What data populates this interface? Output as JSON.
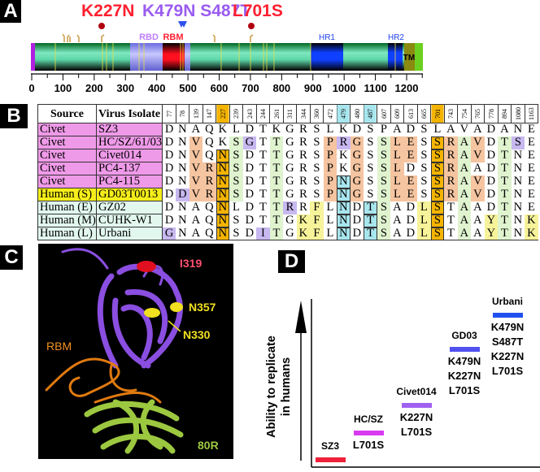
{
  "panels": {
    "a": "A",
    "b": "B",
    "c": "C",
    "d": "D"
  },
  "panel_a": {
    "mutations": [
      {
        "label": "K227N",
        "color": "#ff2030"
      },
      {
        "label": "K479N S487T",
        "color": "#9a5cf0"
      },
      {
        "label": "L701S",
        "color": "#ff2030"
      }
    ],
    "domains": {
      "rbd": "RBD",
      "rbm": "RBM",
      "hr1": "HR1",
      "hr2": "HR2",
      "tm": "TM"
    },
    "axis_ticks": [
      "0",
      "100",
      "200",
      "300",
      "400",
      "500",
      "600",
      "700",
      "800",
      "900",
      "1000",
      "1100",
      "1200"
    ]
  },
  "panel_b": {
    "headers": {
      "source": "Source",
      "isolate": "Virus Isolate"
    },
    "positions": [
      "77",
      "78",
      "139",
      "147",
      "227",
      "239",
      "243",
      "244",
      "261",
      "311",
      "344",
      "360",
      "472",
      "479",
      "480",
      "487",
      "607",
      "609",
      "613",
      "665",
      "701",
      "743",
      "754",
      "765",
      "778",
      "894",
      "1080",
      "1163"
    ],
    "rows": [
      {
        "source": "Civet",
        "isolate": "SZ3",
        "src_color": "#ef9ae8",
        "seq": "DNAQKLDTKGRSLKDSPADSLAVADANE",
        "hl": "............................"
      },
      {
        "source": "Civet",
        "isolate": "HC/SZ/61/03",
        "src_color": "#ef9ae8",
        "seq": "DNVQKSGTTGRSPRGSSLESSRAVDTSE",
        "hl": "..o..gp.g...opo.goo.kogo.gp."
      },
      {
        "source": "Civet",
        "isolate": "Civet014",
        "src_color": "#ef9ae8",
        "seq": "DNVQNSDTTGRSPKGSSLESSRAVDTNE",
        "hl": "..o.kg..g...o.o.goo.kogo.g.."
      },
      {
        "source": "Civet",
        "isolate": "PC4-137",
        "src_color": "#ef9ae8",
        "seq": "DNVRNSDTTGRSPKGSSLDSSRAADTNE",
        "hl": "..ookg..g...o.o.go..kog..g.."
      },
      {
        "source": "Civet",
        "isolate": "PC4-115",
        "src_color": "#ef9ae8",
        "seq": "DNVRNSDTTGRSPNGSSLESSRAVDTNE",
        "hl": "..ookg..g...oco.goo.kogo.g.."
      },
      {
        "source": "Human (S)",
        "isolate": "GD03T0013",
        "src_color": "#f5ee1a",
        "seq": "DDVRNSDTTGRSPNGSSLESSRAVDTNE",
        "hl": ".pookg..g...oco.goo.kogo.g.."
      },
      {
        "source": "Human (E)",
        "isolate": "GZ02",
        "src_color": "#e2f8ef",
        "seq": "DNAQNLDTTRRFLNDTSADLSTAADTNE",
        "hl": "....k...gp.y.c.cg..yk.g..g.."
      },
      {
        "source": "Human (M)",
        "isolate": "CUHK-W1",
        "src_color": "#e2f8ef",
        "seq": "DNAQNSDTTGKFLNDTSADLSTAAYTNK",
        "hl": "....k...g.yy.c.cg..yk.g.yg.y"
      },
      {
        "source": "Human (L)",
        "isolate": "Urbani",
        "src_color": "#e2f8ef",
        "seq": "GNAQNSDITGKFLNDTSADLSTAAYTNK",
        "hl": "p...k..pg.yy.c.cg..yk.g.yg.y"
      }
    ]
  },
  "panel_c": {
    "labels": {
      "i319": "I319",
      "n357": "N357",
      "n330": "N330",
      "rbm": "RBM",
      "r80": "80R"
    }
  },
  "panel_d": {
    "ylabel_line1": "Ability to replicate",
    "ylabel_line2": "in humans",
    "isolates": [
      {
        "name": "SZ3",
        "mutations": [],
        "color": "#f0203a"
      },
      {
        "name": "HC/SZ",
        "mutations": [
          "L701S"
        ],
        "color": "#d83af0"
      },
      {
        "name": "Civet014",
        "mutations": [
          "K227N",
          "L701S"
        ],
        "color": "#a060f0"
      },
      {
        "name": "GD03",
        "mutations": [
          "K479N",
          "K227N",
          "L701S"
        ],
        "color": "#5050f0"
      },
      {
        "name": "Urbani",
        "mutations": [
          "K479N",
          "S487T",
          "K227N",
          "L701S"
        ],
        "color": "#2050f0"
      }
    ]
  }
}
